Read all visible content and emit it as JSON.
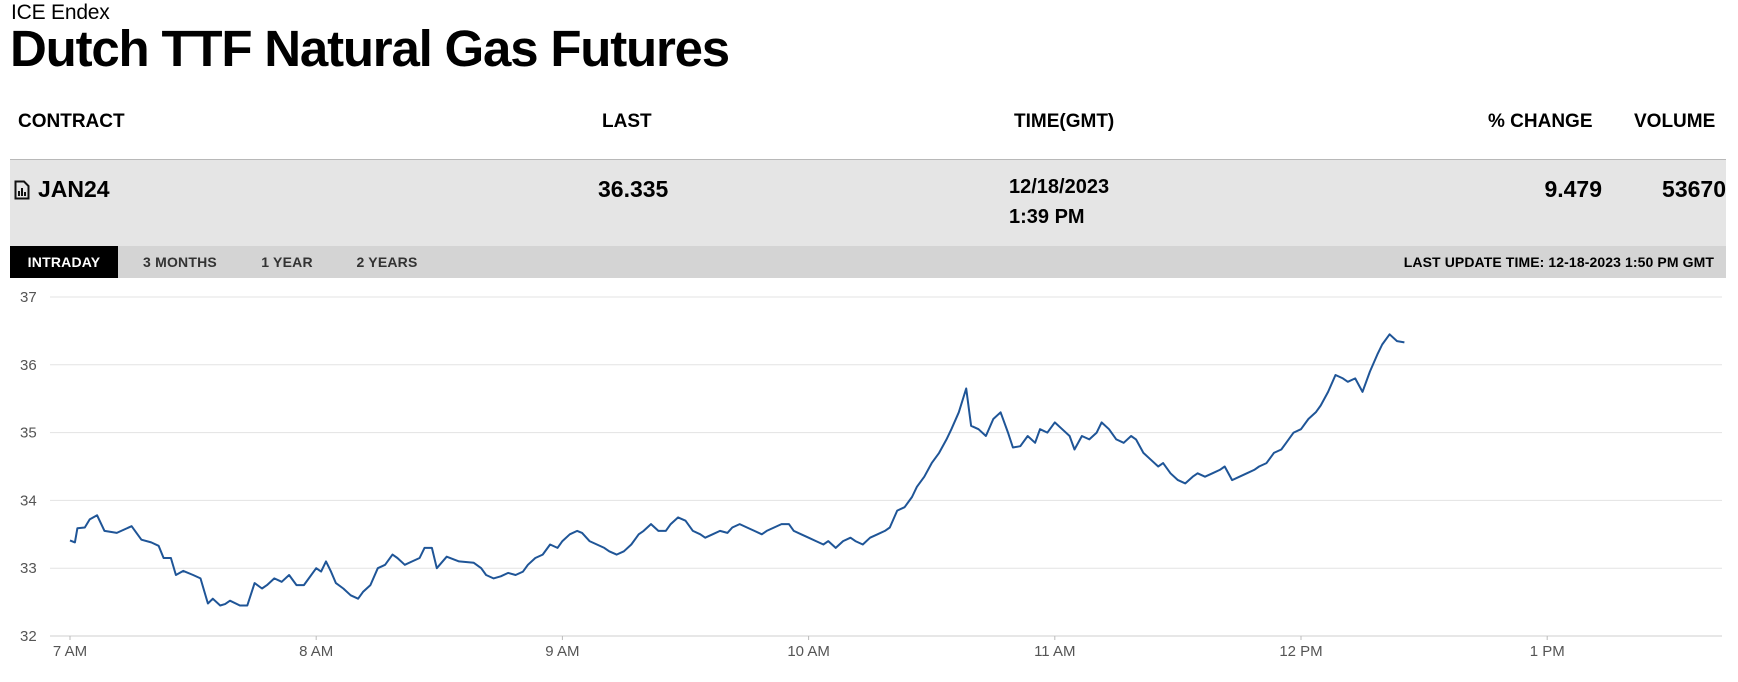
{
  "header": {
    "exchange": "ICE Endex",
    "title": "Dutch TTF Natural Gas Futures"
  },
  "table": {
    "columns": [
      "CONTRACT",
      "LAST",
      "TIME(GMT)",
      "% CHANGE",
      "VOLUME"
    ],
    "row": {
      "contract": "JAN24",
      "last": "36.335",
      "date": "12/18/2023",
      "time": "1:39 PM",
      "pct_change": "9.479",
      "volume": "53670"
    }
  },
  "tabs": [
    "INTRADAY",
    "3 MONTHS",
    "1 YEAR",
    "2 YEARS"
  ],
  "active_tab": "INTRADAY",
  "last_update": "LAST UPDATE TIME: 12-18-2023 1:50 PM GMT",
  "colors": {
    "line": "#1f5597",
    "grid": "#e3e3e3",
    "active_tab": "#000000",
    "row_bg": "#e5e5e5"
  },
  "chart_data": {
    "type": "line",
    "title": "",
    "xlabel": "",
    "ylabel": "",
    "x_unit": "hours GMT",
    "xlim": [
      7.0,
      13.75
    ],
    "ylim": [
      32,
      37
    ],
    "yticks": [
      32,
      33,
      34,
      35,
      36,
      37
    ],
    "xticks": [
      {
        "value": 7,
        "label": "7 AM"
      },
      {
        "value": 8,
        "label": "8 AM"
      },
      {
        "value": 9,
        "label": "9 AM"
      },
      {
        "value": 10,
        "label": "10 AM"
      },
      {
        "value": 11,
        "label": "11 AM"
      },
      {
        "value": 12,
        "label": "12 PM"
      },
      {
        "value": 13,
        "label": "1 PM"
      }
    ],
    "grid": true,
    "series": [
      {
        "points": [
          [
            7.0,
            33.41
          ],
          [
            7.02,
            33.38
          ],
          [
            7.03,
            33.59
          ],
          [
            7.06,
            33.6
          ],
          [
            7.08,
            33.72
          ],
          [
            7.11,
            33.78
          ],
          [
            7.14,
            33.55
          ],
          [
            7.19,
            33.52
          ],
          [
            7.25,
            33.62
          ],
          [
            7.29,
            33.42
          ],
          [
            7.33,
            33.38
          ],
          [
            7.36,
            33.33
          ],
          [
            7.38,
            33.15
          ],
          [
            7.41,
            33.15
          ],
          [
            7.43,
            32.9
          ],
          [
            7.46,
            32.96
          ],
          [
            7.5,
            32.9
          ],
          [
            7.53,
            32.85
          ],
          [
            7.56,
            32.48
          ],
          [
            7.58,
            32.55
          ],
          [
            7.61,
            32.45
          ],
          [
            7.63,
            32.47
          ],
          [
            7.65,
            32.52
          ],
          [
            7.69,
            32.45
          ],
          [
            7.72,
            32.45
          ],
          [
            7.75,
            32.78
          ],
          [
            7.78,
            32.7
          ],
          [
            7.8,
            32.75
          ],
          [
            7.83,
            32.85
          ],
          [
            7.86,
            32.8
          ],
          [
            7.89,
            32.9
          ],
          [
            7.92,
            32.75
          ],
          [
            7.95,
            32.75
          ],
          [
            7.97,
            32.85
          ],
          [
            8.0,
            33.0
          ],
          [
            8.02,
            32.95
          ],
          [
            8.04,
            33.1
          ],
          [
            8.06,
            32.95
          ],
          [
            8.08,
            32.78
          ],
          [
            8.11,
            32.7
          ],
          [
            8.14,
            32.6
          ],
          [
            8.17,
            32.55
          ],
          [
            8.19,
            32.65
          ],
          [
            8.22,
            32.75
          ],
          [
            8.25,
            33.0
          ],
          [
            8.28,
            33.05
          ],
          [
            8.31,
            33.2
          ],
          [
            8.33,
            33.15
          ],
          [
            8.36,
            33.05
          ],
          [
            8.39,
            33.1
          ],
          [
            8.42,
            33.15
          ],
          [
            8.44,
            33.3
          ],
          [
            8.47,
            33.3
          ],
          [
            8.49,
            33.0
          ],
          [
            8.53,
            33.17
          ],
          [
            8.58,
            33.1
          ],
          [
            8.64,
            33.08
          ],
          [
            8.67,
            33.0
          ],
          [
            8.69,
            32.9
          ],
          [
            8.72,
            32.85
          ],
          [
            8.75,
            32.88
          ],
          [
            8.78,
            32.93
          ],
          [
            8.81,
            32.9
          ],
          [
            8.84,
            32.95
          ],
          [
            8.86,
            33.05
          ],
          [
            8.89,
            33.15
          ],
          [
            8.92,
            33.2
          ],
          [
            8.95,
            33.35
          ],
          [
            8.98,
            33.3
          ],
          [
            9.0,
            33.4
          ],
          [
            9.03,
            33.5
          ],
          [
            9.06,
            33.55
          ],
          [
            9.08,
            33.52
          ],
          [
            9.11,
            33.4
          ],
          [
            9.14,
            33.35
          ],
          [
            9.17,
            33.3
          ],
          [
            9.19,
            33.25
          ],
          [
            9.22,
            33.2
          ],
          [
            9.25,
            33.25
          ],
          [
            9.28,
            33.35
          ],
          [
            9.31,
            33.5
          ],
          [
            9.33,
            33.55
          ],
          [
            9.36,
            33.65
          ],
          [
            9.39,
            33.55
          ],
          [
            9.42,
            33.55
          ],
          [
            9.44,
            33.65
          ],
          [
            9.47,
            33.75
          ],
          [
            9.5,
            33.7
          ],
          [
            9.53,
            33.55
          ],
          [
            9.56,
            33.5
          ],
          [
            9.58,
            33.45
          ],
          [
            9.61,
            33.5
          ],
          [
            9.64,
            33.55
          ],
          [
            9.67,
            33.52
          ],
          [
            9.69,
            33.6
          ],
          [
            9.72,
            33.65
          ],
          [
            9.75,
            33.6
          ],
          [
            9.78,
            33.55
          ],
          [
            9.81,
            33.5
          ],
          [
            9.83,
            33.55
          ],
          [
            9.86,
            33.6
          ],
          [
            9.89,
            33.65
          ],
          [
            9.92,
            33.65
          ],
          [
            9.94,
            33.55
          ],
          [
            9.97,
            33.5
          ],
          [
            10.0,
            33.45
          ],
          [
            10.03,
            33.4
          ],
          [
            10.06,
            33.35
          ],
          [
            10.08,
            33.4
          ],
          [
            10.11,
            33.3
          ],
          [
            10.14,
            33.4
          ],
          [
            10.17,
            33.45
          ],
          [
            10.19,
            33.4
          ],
          [
            10.22,
            33.35
          ],
          [
            10.25,
            33.45
          ],
          [
            10.28,
            33.5
          ],
          [
            10.31,
            33.55
          ],
          [
            10.33,
            33.6
          ],
          [
            10.36,
            33.85
          ],
          [
            10.39,
            33.9
          ],
          [
            10.42,
            34.05
          ],
          [
            10.44,
            34.2
          ],
          [
            10.47,
            34.35
          ],
          [
            10.5,
            34.55
          ],
          [
            10.53,
            34.7
          ],
          [
            10.56,
            34.9
          ],
          [
            10.58,
            35.05
          ],
          [
            10.61,
            35.3
          ],
          [
            10.64,
            35.65
          ],
          [
            10.66,
            35.1
          ],
          [
            10.69,
            35.05
          ],
          [
            10.72,
            34.95
          ],
          [
            10.75,
            35.2
          ],
          [
            10.78,
            35.3
          ],
          [
            10.81,
            35.0
          ],
          [
            10.83,
            34.78
          ],
          [
            10.86,
            34.8
          ],
          [
            10.89,
            34.95
          ],
          [
            10.92,
            34.85
          ],
          [
            10.94,
            35.05
          ],
          [
            10.97,
            35.0
          ],
          [
            11.0,
            35.15
          ],
          [
            11.03,
            35.05
          ],
          [
            11.06,
            34.95
          ],
          [
            11.08,
            34.75
          ],
          [
            11.11,
            34.95
          ],
          [
            11.14,
            34.9
          ],
          [
            11.17,
            35.0
          ],
          [
            11.19,
            35.15
          ],
          [
            11.22,
            35.05
          ],
          [
            11.25,
            34.9
          ],
          [
            11.28,
            34.85
          ],
          [
            11.31,
            34.95
          ],
          [
            11.33,
            34.9
          ],
          [
            11.36,
            34.7
          ],
          [
            11.39,
            34.6
          ],
          [
            11.42,
            34.5
          ],
          [
            11.44,
            34.55
          ],
          [
            11.47,
            34.4
          ],
          [
            11.5,
            34.3
          ],
          [
            11.53,
            34.25
          ],
          [
            11.56,
            34.35
          ],
          [
            11.58,
            34.4
          ],
          [
            11.61,
            34.35
          ],
          [
            11.64,
            34.4
          ],
          [
            11.67,
            34.45
          ],
          [
            11.69,
            34.5
          ],
          [
            11.72,
            34.3
          ],
          [
            11.75,
            34.35
          ],
          [
            11.78,
            34.4
          ],
          [
            11.81,
            34.45
          ],
          [
            11.83,
            34.5
          ],
          [
            11.86,
            34.55
          ],
          [
            11.89,
            34.7
          ],
          [
            11.92,
            34.75
          ],
          [
            11.94,
            34.85
          ],
          [
            11.97,
            35.0
          ],
          [
            12.0,
            35.05
          ],
          [
            12.03,
            35.2
          ],
          [
            12.06,
            35.3
          ],
          [
            12.08,
            35.4
          ],
          [
            12.11,
            35.6
          ],
          [
            12.14,
            35.85
          ],
          [
            12.17,
            35.8
          ],
          [
            12.19,
            35.75
          ],
          [
            12.22,
            35.8
          ],
          [
            12.25,
            35.6
          ],
          [
            12.28,
            35.9
          ],
          [
            12.31,
            36.15
          ],
          [
            12.33,
            36.3
          ],
          [
            12.36,
            36.45
          ],
          [
            12.39,
            36.35
          ],
          [
            12.42,
            36.33
          ]
        ]
      }
    ]
  }
}
